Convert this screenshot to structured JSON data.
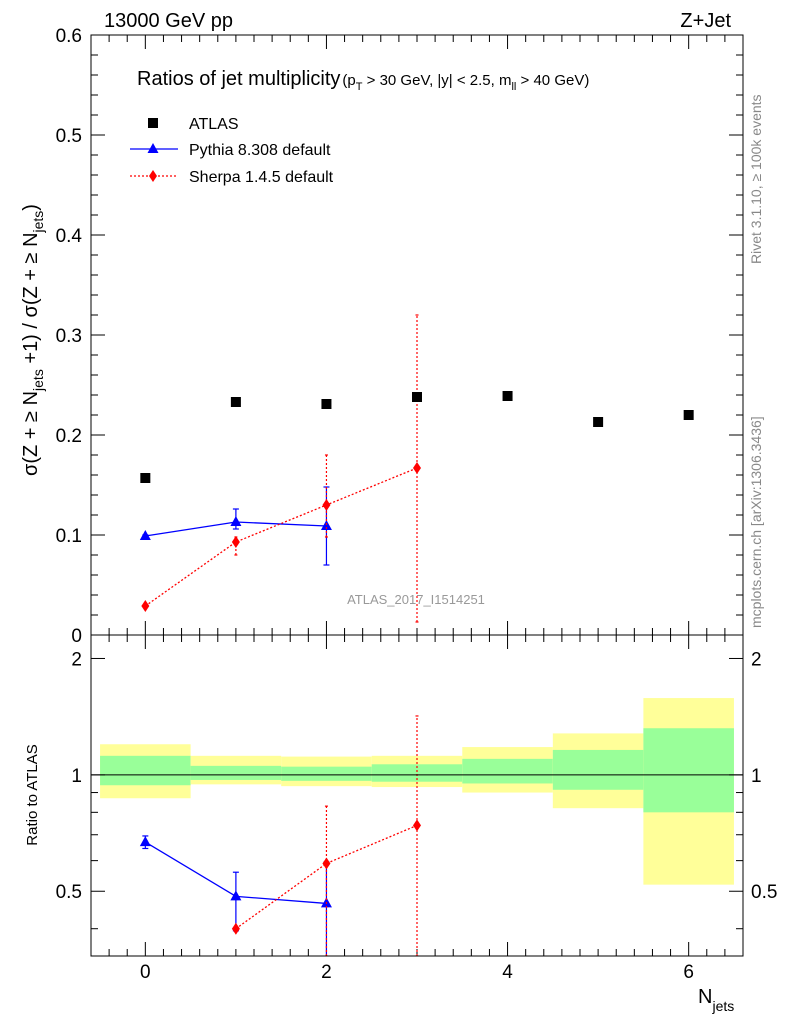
{
  "header": {
    "left": "13000 GeV pp",
    "right": "Z+Jet"
  },
  "side_labels": {
    "rivet": "Rivet 3.1.10, ≥ 100k events",
    "mcplots": "mcplots.cern.ch [arXiv:1306.3436]"
  },
  "colors": {
    "atlas": "#000000",
    "pythia": "#0000ff",
    "sherpa": "#ff0000",
    "band_outer": "#ffff99",
    "band_inner": "#99ff99",
    "watermark": "#999999"
  },
  "chart_data": [
    {
      "type": "scatter",
      "title": "Ratios of jet multiplicity",
      "subtitle": "(p_T > 30 GeV, |y| < 2.5, m_ll > 40 GeV)",
      "ylabel": "σ(Z + ≥ N_jets +1) / σ(Z + ≥ N_jets)",
      "watermark": "ATLAS_2017_I1514251",
      "xlim": [
        -0.6,
        6.6
      ],
      "ylim": [
        0,
        0.6
      ],
      "yticks": [
        0,
        0.1,
        0.2,
        0.3,
        0.4,
        0.5,
        0.6
      ],
      "ytick_labels": [
        "0",
        "0.1",
        "0.2",
        "0.3",
        "0.4",
        "0.5",
        "0.6"
      ],
      "legend_position": "top-left",
      "series": [
        {
          "name": "ATLAS",
          "style": "square",
          "x": [
            0,
            1,
            2,
            3,
            4,
            5,
            6
          ],
          "y": [
            0.157,
            0.233,
            0.231,
            0.238,
            0.239,
            0.213,
            0.22
          ]
        },
        {
          "name": "Pythia 8.308 default",
          "style": "triangle-line",
          "x": [
            0,
            1,
            2
          ],
          "y": [
            0.099,
            0.113,
            0.109
          ],
          "err_low": [
            0.001,
            0.007,
            0.039
          ],
          "err_high": [
            0.001,
            0.013,
            0.039
          ]
        },
        {
          "name": "Sherpa 1.4.5 default",
          "style": "diamond-dotted",
          "x": [
            0,
            1,
            2,
            3
          ],
          "y": [
            0.029,
            0.093,
            0.13,
            0.167
          ],
          "err_low": [
            0.001,
            0.013,
            0.032,
            0.154
          ],
          "err_high": [
            0.001,
            0.005,
            0.05,
            0.153
          ]
        }
      ]
    },
    {
      "type": "scatter",
      "ylabel": "Ratio to ATLAS",
      "xlabel": "N_jets",
      "xlim": [
        -0.6,
        6.6
      ],
      "ylim": [
        0.34,
        2.3
      ],
      "yticks": [
        0.5,
        1,
        2
      ],
      "ytick_labels": [
        "0.5",
        "1",
        "2"
      ],
      "xticks": [
        0,
        2,
        4,
        6
      ],
      "xtick_labels": [
        "0",
        "2",
        "4",
        "6"
      ],
      "reference_line": 1,
      "bands": [
        {
          "x0": -0.5,
          "x1": 0.5,
          "outer": [
            0.87,
            1.2
          ],
          "inner": [
            0.94,
            1.12
          ]
        },
        {
          "x0": 0.5,
          "x1": 1.5,
          "outer": [
            0.945,
            1.12
          ],
          "inner": [
            0.97,
            1.055
          ]
        },
        {
          "x0": 1.5,
          "x1": 2.5,
          "outer": [
            0.935,
            1.115
          ],
          "inner": [
            0.965,
            1.05
          ]
        },
        {
          "x0": 2.5,
          "x1": 3.5,
          "outer": [
            0.93,
            1.12
          ],
          "inner": [
            0.96,
            1.065
          ]
        },
        {
          "x0": 3.5,
          "x1": 4.5,
          "outer": [
            0.9,
            1.18
          ],
          "inner": [
            0.95,
            1.1
          ]
        },
        {
          "x0": 4.5,
          "x1": 5.5,
          "outer": [
            0.82,
            1.28
          ],
          "inner": [
            0.915,
            1.16
          ]
        },
        {
          "x0": 5.5,
          "x1": 6.5,
          "outer": [
            0.52,
            1.58
          ],
          "inner": [
            0.8,
            1.32
          ]
        }
      ],
      "series": [
        {
          "name": "Pythia 8.308 default",
          "style": "triangle-line",
          "x": [
            0,
            1,
            2
          ],
          "y": [
            0.67,
            0.485,
            0.465
          ],
          "err_low": [
            0.025,
            0.09,
            0.13
          ],
          "err_high": [
            0.025,
            0.075,
            0.13
          ]
        },
        {
          "name": "Sherpa 1.4.5 default",
          "style": "diamond-dotted",
          "x": [
            1,
            2,
            3
          ],
          "y": [
            0.4,
            0.59,
            0.74
          ],
          "err_low": [
            0.0,
            0.25,
            0.4
          ],
          "err_high": [
            0.0,
            0.24,
            0.68
          ]
        }
      ]
    }
  ]
}
